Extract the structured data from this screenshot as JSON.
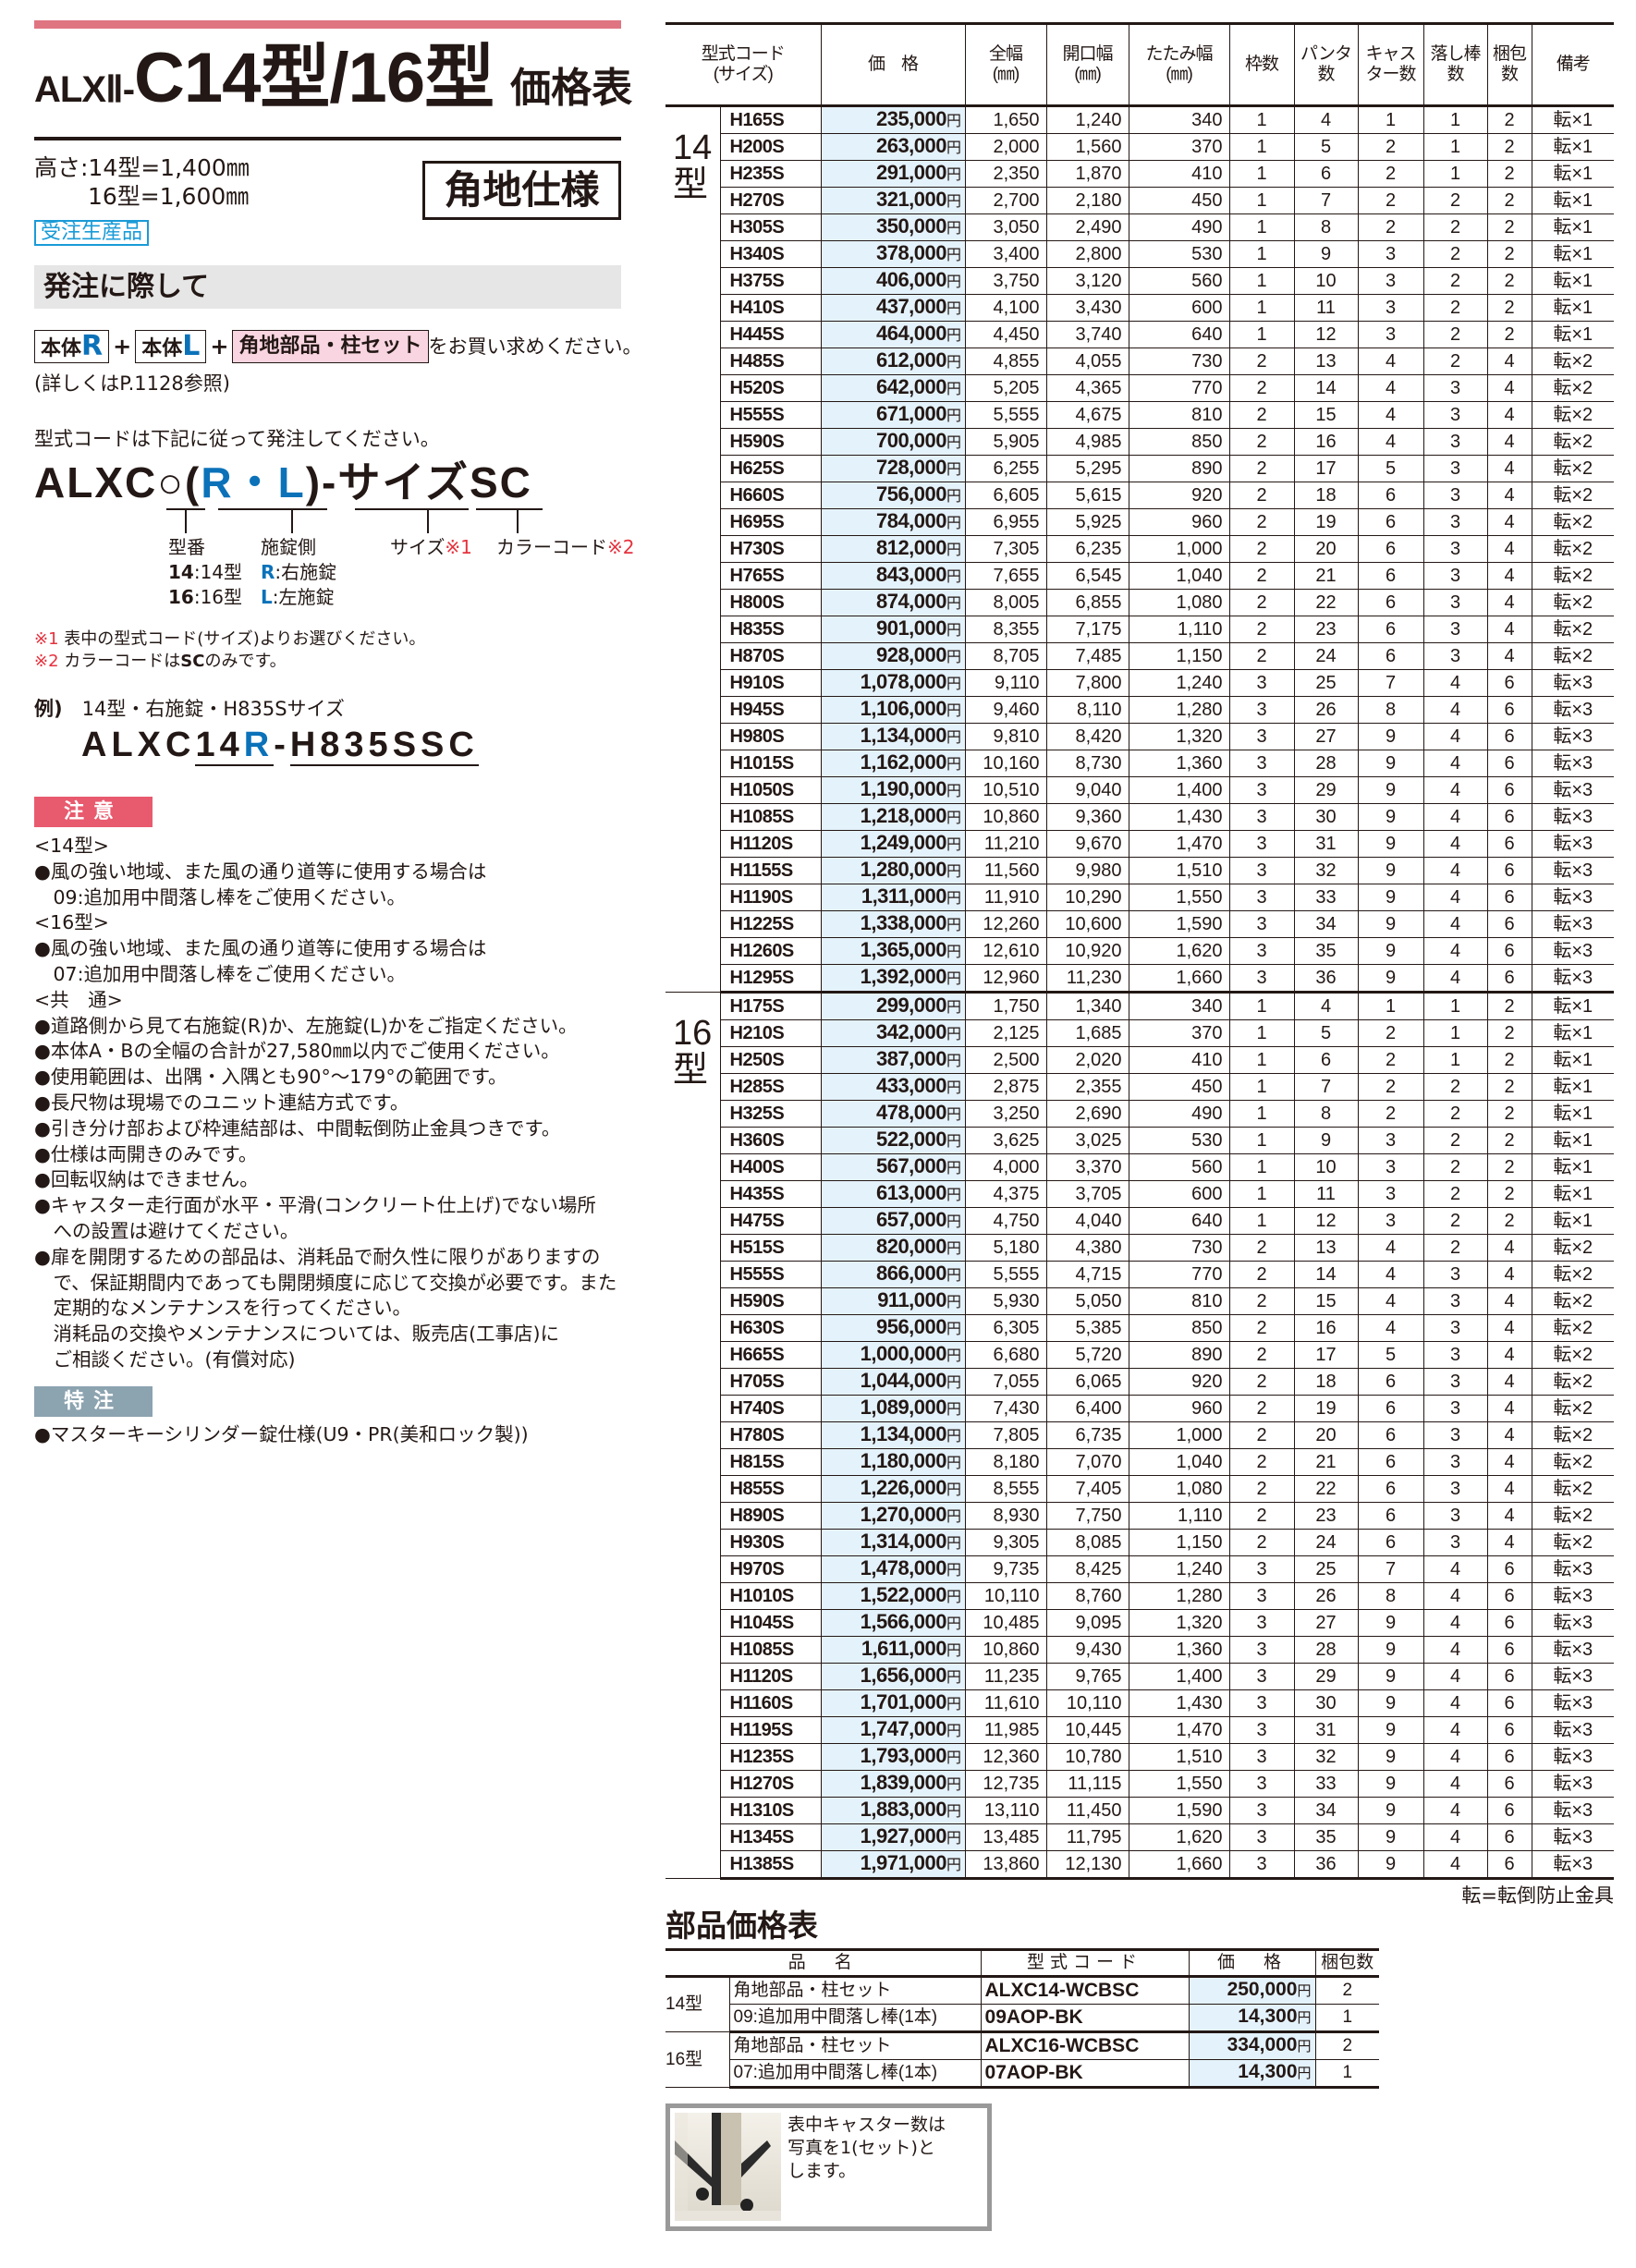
{
  "title": {
    "prefix": "ALXⅡ-",
    "main": "C14型/16型",
    "suffix": "価格表"
  },
  "height_spec": "高さ:14型=1,400㎜\n　　 16型=1,600㎜",
  "spec_badge": "角地仕様",
  "made_to_order": "受注生産品",
  "ordering": {
    "heading": "発注に際して",
    "box1": "本体",
    "box1_letter": "R",
    "box2": "本体",
    "box2_letter": "L",
    "box3": "角地部品・柱セット",
    "plus": "+",
    "tail": "をお買い求めください。",
    "detail": "(詳しくはP.1128参照)",
    "code_intro": "型式コードは下記に従って発注してください。",
    "formula": {
      "p1": "ALXC",
      "p2": "○",
      "p3": "(",
      "p4": "R・L",
      "p5": ")",
      "p6": "-",
      "p7": "サイズ",
      "p8": "SC"
    },
    "labels": {
      "model": "型番",
      "lock": "施錠側",
      "size": "サイズ",
      "size_mark": "※1",
      "color": "カラーコード",
      "color_mark": "※2"
    },
    "model_opts": [
      {
        "k": "14",
        "v": ":14型"
      },
      {
        "k": "16",
        "v": ":16型"
      }
    ],
    "lock_opts": [
      {
        "k": "R",
        "v": ":右施錠"
      },
      {
        "k": "L",
        "v": ":左施錠"
      }
    ],
    "note1_mark": "※1",
    "note1": " 表中の型式コード(サイズ)よりお選びください。",
    "note2_mark": "※2",
    "note2a": " カラーコードは",
    "note2b": "SC",
    "note2c": "のみです。",
    "example_label": "例)",
    "example_text": "　14型・右施錠・H835Sサイズ",
    "example_code": {
      "a": "ALXC",
      "b": "14",
      "c": "R",
      "d": "-",
      "e": "H835S",
      "f": "SC"
    }
  },
  "caution": {
    "label": "注意",
    "text": "<14型>\n●風の強い地域、また風の通り道等に使用する場合は\n　09:追加用中間落し棒をご使用ください。\n<16型>\n●風の強い地域、また風の通り道等に使用する場合は\n　07:追加用中間落し棒をご使用ください。\n<共　通>\n●道路側から見て右施錠(R)か、左施錠(L)かをご指定ください。\n●本体A・Bの全幅の合計が27,580㎜以内でご使用ください。\n●使用範囲は、出隅・入隅とも90°～179°の範囲です。\n●長尺物は現場でのユニット連結方式です。\n●引き分け部および枠連結部は、中間転倒防止金具つきです。\n●仕様は両開きのみです。\n●回転収納はできません。\n●キャスター走行面が水平・平滑(コンクリート仕上げ)でない場所\n　への設置は避けてください。\n●扉を開閉するための部品は、消耗品で耐久性に限りがありますの\n　で、保証期間内であっても開閉頻度に応じて交換が必要です。また\n　定期的なメンテナンスを行ってください。\n　消耗品の交換やメンテナンスについては、販売店(工事店)に\n　ご相談ください。(有償対応)"
  },
  "special": {
    "label": "特注",
    "text": "●マスターキーシリンダー錠仕様(U9・PR(美和ロック製))"
  },
  "colors": {
    "accent_pink": "#e07582",
    "caution_red": "#e85a6e",
    "special_gray": "#8ca3b0",
    "brand_blue": "#0b72b9",
    "price_bg": "#e4f2fb",
    "cyan": "#1a9bd7"
  },
  "price_table": {
    "headers": [
      "型式コード\n(サイズ)",
      "価　格",
      "全幅\n(㎜)",
      "開口幅\n(㎜)",
      "たたみ幅\n(㎜)",
      "枠数",
      "パンタ\n数",
      "キャス\nター数",
      "落し棒\n数",
      "梱包\n数",
      "備考"
    ],
    "yen": "円",
    "groups": [
      {
        "label": "14\n型",
        "rows": [
          [
            "H165S",
            "235,000",
            "1,650",
            "1,240",
            "340",
            "1",
            "4",
            "1",
            "1",
            "2",
            "転×1"
          ],
          [
            "H200S",
            "263,000",
            "2,000",
            "1,560",
            "370",
            "1",
            "5",
            "2",
            "1",
            "2",
            "転×1"
          ],
          [
            "H235S",
            "291,000",
            "2,350",
            "1,870",
            "410",
            "1",
            "6",
            "2",
            "1",
            "2",
            "転×1"
          ],
          [
            "H270S",
            "321,000",
            "2,700",
            "2,180",
            "450",
            "1",
            "7",
            "2",
            "2",
            "2",
            "転×1"
          ],
          [
            "H305S",
            "350,000",
            "3,050",
            "2,490",
            "490",
            "1",
            "8",
            "2",
            "2",
            "2",
            "転×1"
          ],
          [
            "H340S",
            "378,000",
            "3,400",
            "2,800",
            "530",
            "1",
            "9",
            "3",
            "2",
            "2",
            "転×1"
          ],
          [
            "H375S",
            "406,000",
            "3,750",
            "3,120",
            "560",
            "1",
            "10",
            "3",
            "2",
            "2",
            "転×1"
          ],
          [
            "H410S",
            "437,000",
            "4,100",
            "3,430",
            "600",
            "1",
            "11",
            "3",
            "2",
            "2",
            "転×1"
          ],
          [
            "H445S",
            "464,000",
            "4,450",
            "3,740",
            "640",
            "1",
            "12",
            "3",
            "2",
            "2",
            "転×1"
          ],
          [
            "H485S",
            "612,000",
            "4,855",
            "4,055",
            "730",
            "2",
            "13",
            "4",
            "2",
            "4",
            "転×2"
          ],
          [
            "H520S",
            "642,000",
            "5,205",
            "4,365",
            "770",
            "2",
            "14",
            "4",
            "3",
            "4",
            "転×2"
          ],
          [
            "H555S",
            "671,000",
            "5,555",
            "4,675",
            "810",
            "2",
            "15",
            "4",
            "3",
            "4",
            "転×2"
          ],
          [
            "H590S",
            "700,000",
            "5,905",
            "4,985",
            "850",
            "2",
            "16",
            "4",
            "3",
            "4",
            "転×2"
          ],
          [
            "H625S",
            "728,000",
            "6,255",
            "5,295",
            "890",
            "2",
            "17",
            "5",
            "3",
            "4",
            "転×2"
          ],
          [
            "H660S",
            "756,000",
            "6,605",
            "5,615",
            "920",
            "2",
            "18",
            "6",
            "3",
            "4",
            "転×2"
          ],
          [
            "H695S",
            "784,000",
            "6,955",
            "5,925",
            "960",
            "2",
            "19",
            "6",
            "3",
            "4",
            "転×2"
          ],
          [
            "H730S",
            "812,000",
            "7,305",
            "6,235",
            "1,000",
            "2",
            "20",
            "6",
            "3",
            "4",
            "転×2"
          ],
          [
            "H765S",
            "843,000",
            "7,655",
            "6,545",
            "1,040",
            "2",
            "21",
            "6",
            "3",
            "4",
            "転×2"
          ],
          [
            "H800S",
            "874,000",
            "8,005",
            "6,855",
            "1,080",
            "2",
            "22",
            "6",
            "3",
            "4",
            "転×2"
          ],
          [
            "H835S",
            "901,000",
            "8,355",
            "7,175",
            "1,110",
            "2",
            "23",
            "6",
            "3",
            "4",
            "転×2"
          ],
          [
            "H870S",
            "928,000",
            "8,705",
            "7,485",
            "1,150",
            "2",
            "24",
            "6",
            "3",
            "4",
            "転×2"
          ],
          [
            "H910S",
            "1,078,000",
            "9,110",
            "7,800",
            "1,240",
            "3",
            "25",
            "7",
            "4",
            "6",
            "転×3"
          ],
          [
            "H945S",
            "1,106,000",
            "9,460",
            "8,110",
            "1,280",
            "3",
            "26",
            "8",
            "4",
            "6",
            "転×3"
          ],
          [
            "H980S",
            "1,134,000",
            "9,810",
            "8,420",
            "1,320",
            "3",
            "27",
            "9",
            "4",
            "6",
            "転×3"
          ],
          [
            "H1015S",
            "1,162,000",
            "10,160",
            "8,730",
            "1,360",
            "3",
            "28",
            "9",
            "4",
            "6",
            "転×3"
          ],
          [
            "H1050S",
            "1,190,000",
            "10,510",
            "9,040",
            "1,400",
            "3",
            "29",
            "9",
            "4",
            "6",
            "転×3"
          ],
          [
            "H1085S",
            "1,218,000",
            "10,860",
            "9,360",
            "1,430",
            "3",
            "30",
            "9",
            "4",
            "6",
            "転×3"
          ],
          [
            "H1120S",
            "1,249,000",
            "11,210",
            "9,670",
            "1,470",
            "3",
            "31",
            "9",
            "4",
            "6",
            "転×3"
          ],
          [
            "H1155S",
            "1,280,000",
            "11,560",
            "9,980",
            "1,510",
            "3",
            "32",
            "9",
            "4",
            "6",
            "転×3"
          ],
          [
            "H1190S",
            "1,311,000",
            "11,910",
            "10,290",
            "1,550",
            "3",
            "33",
            "9",
            "4",
            "6",
            "転×3"
          ],
          [
            "H1225S",
            "1,338,000",
            "12,260",
            "10,600",
            "1,590",
            "3",
            "34",
            "9",
            "4",
            "6",
            "転×3"
          ],
          [
            "H1260S",
            "1,365,000",
            "12,610",
            "10,920",
            "1,620",
            "3",
            "35",
            "9",
            "4",
            "6",
            "転×3"
          ],
          [
            "H1295S",
            "1,392,000",
            "12,960",
            "11,230",
            "1,660",
            "3",
            "36",
            "9",
            "4",
            "6",
            "転×3"
          ]
        ]
      },
      {
        "label": "16\n型",
        "rows": [
          [
            "H175S",
            "299,000",
            "1,750",
            "1,340",
            "340",
            "1",
            "4",
            "1",
            "1",
            "2",
            "転×1"
          ],
          [
            "H210S",
            "342,000",
            "2,125",
            "1,685",
            "370",
            "1",
            "5",
            "2",
            "1",
            "2",
            "転×1"
          ],
          [
            "H250S",
            "387,000",
            "2,500",
            "2,020",
            "410",
            "1",
            "6",
            "2",
            "1",
            "2",
            "転×1"
          ],
          [
            "H285S",
            "433,000",
            "2,875",
            "2,355",
            "450",
            "1",
            "7",
            "2",
            "2",
            "2",
            "転×1"
          ],
          [
            "H325S",
            "478,000",
            "3,250",
            "2,690",
            "490",
            "1",
            "8",
            "2",
            "2",
            "2",
            "転×1"
          ],
          [
            "H360S",
            "522,000",
            "3,625",
            "3,025",
            "530",
            "1",
            "9",
            "3",
            "2",
            "2",
            "転×1"
          ],
          [
            "H400S",
            "567,000",
            "4,000",
            "3,370",
            "560",
            "1",
            "10",
            "3",
            "2",
            "2",
            "転×1"
          ],
          [
            "H435S",
            "613,000",
            "4,375",
            "3,705",
            "600",
            "1",
            "11",
            "3",
            "2",
            "2",
            "転×1"
          ],
          [
            "H475S",
            "657,000",
            "4,750",
            "4,040",
            "640",
            "1",
            "12",
            "3",
            "2",
            "2",
            "転×1"
          ],
          [
            "H515S",
            "820,000",
            "5,180",
            "4,380",
            "730",
            "2",
            "13",
            "4",
            "2",
            "4",
            "転×2"
          ],
          [
            "H555S",
            "866,000",
            "5,555",
            "4,715",
            "770",
            "2",
            "14",
            "4",
            "3",
            "4",
            "転×2"
          ],
          [
            "H590S",
            "911,000",
            "5,930",
            "5,050",
            "810",
            "2",
            "15",
            "4",
            "3",
            "4",
            "転×2"
          ],
          [
            "H630S",
            "956,000",
            "6,305",
            "5,385",
            "850",
            "2",
            "16",
            "4",
            "3",
            "4",
            "転×2"
          ],
          [
            "H665S",
            "1,000,000",
            "6,680",
            "5,720",
            "890",
            "2",
            "17",
            "5",
            "3",
            "4",
            "転×2"
          ],
          [
            "H705S",
            "1,044,000",
            "7,055",
            "6,065",
            "920",
            "2",
            "18",
            "6",
            "3",
            "4",
            "転×2"
          ],
          [
            "H740S",
            "1,089,000",
            "7,430",
            "6,400",
            "960",
            "2",
            "19",
            "6",
            "3",
            "4",
            "転×2"
          ],
          [
            "H780S",
            "1,134,000",
            "7,805",
            "6,735",
            "1,000",
            "2",
            "20",
            "6",
            "3",
            "4",
            "転×2"
          ],
          [
            "H815S",
            "1,180,000",
            "8,180",
            "7,070",
            "1,040",
            "2",
            "21",
            "6",
            "3",
            "4",
            "転×2"
          ],
          [
            "H855S",
            "1,226,000",
            "8,555",
            "7,405",
            "1,080",
            "2",
            "22",
            "6",
            "3",
            "4",
            "転×2"
          ],
          [
            "H890S",
            "1,270,000",
            "8,930",
            "7,750",
            "1,110",
            "2",
            "23",
            "6",
            "3",
            "4",
            "転×2"
          ],
          [
            "H930S",
            "1,314,000",
            "9,305",
            "8,085",
            "1,150",
            "2",
            "24",
            "6",
            "3",
            "4",
            "転×2"
          ],
          [
            "H970S",
            "1,478,000",
            "9,735",
            "8,425",
            "1,240",
            "3",
            "25",
            "7",
            "4",
            "6",
            "転×3"
          ],
          [
            "H1010S",
            "1,522,000",
            "10,110",
            "8,760",
            "1,280",
            "3",
            "26",
            "8",
            "4",
            "6",
            "転×3"
          ],
          [
            "H1045S",
            "1,566,000",
            "10,485",
            "9,095",
            "1,320",
            "3",
            "27",
            "9",
            "4",
            "6",
            "転×3"
          ],
          [
            "H1085S",
            "1,611,000",
            "10,860",
            "9,430",
            "1,360",
            "3",
            "28",
            "9",
            "4",
            "6",
            "転×3"
          ],
          [
            "H1120S",
            "1,656,000",
            "11,235",
            "9,765",
            "1,400",
            "3",
            "29",
            "9",
            "4",
            "6",
            "転×3"
          ],
          [
            "H1160S",
            "1,701,000",
            "11,610",
            "10,110",
            "1,430",
            "3",
            "30",
            "9",
            "4",
            "6",
            "転×3"
          ],
          [
            "H1195S",
            "1,747,000",
            "11,985",
            "10,445",
            "1,470",
            "3",
            "31",
            "9",
            "4",
            "6",
            "転×3"
          ],
          [
            "H1235S",
            "1,793,000",
            "12,360",
            "10,780",
            "1,510",
            "3",
            "32",
            "9",
            "4",
            "6",
            "転×3"
          ],
          [
            "H1270S",
            "1,839,000",
            "12,735",
            "11,115",
            "1,550",
            "3",
            "33",
            "9",
            "4",
            "6",
            "転×3"
          ],
          [
            "H1310S",
            "1,883,000",
            "13,110",
            "11,450",
            "1,590",
            "3",
            "34",
            "9",
            "4",
            "6",
            "転×3"
          ],
          [
            "H1345S",
            "1,927,000",
            "13,485",
            "11,795",
            "1,620",
            "3",
            "35",
            "9",
            "4",
            "6",
            "転×3"
          ],
          [
            "H1385S",
            "1,971,000",
            "13,860",
            "12,130",
            "1,660",
            "3",
            "36",
            "9",
            "4",
            "6",
            "転×3"
          ]
        ]
      }
    ],
    "footnote": "転=転倒防止金具"
  },
  "parts_table": {
    "title": "部品価格表",
    "headers": [
      "品　名",
      "型式コード",
      "価　格",
      "梱包数"
    ],
    "yen": "円",
    "groups": [
      {
        "label": "14型",
        "rows": [
          [
            "角地部品・柱セット",
            "ALXC14-WCBSC",
            "250,000",
            "2"
          ],
          [
            "09:追加用中間落し棒(1本)",
            "09AOP-BK",
            "14,300",
            "1"
          ]
        ]
      },
      {
        "label": "16型",
        "rows": [
          [
            "角地部品・柱セット",
            "ALXC16-WCBSC",
            "334,000",
            "2"
          ],
          [
            "07:追加用中間落し棒(1本)",
            "07AOP-BK",
            "14,300",
            "1"
          ]
        ]
      }
    ]
  },
  "caster_note": "表中キャスター数は\n写真を1(セット)と\nします。"
}
